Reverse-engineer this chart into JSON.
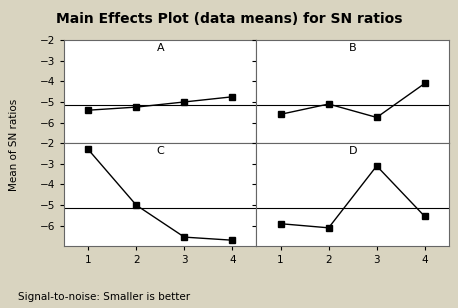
{
  "title": "Main Effects Plot (data means) for SN ratios",
  "ylabel": "Mean of SN ratios",
  "footnote": "Signal-to-noise: Smaller is better",
  "x": [
    1,
    2,
    3,
    4
  ],
  "subplots": [
    {
      "label": "A",
      "y": [
        -5.4,
        -5.25,
        -5.0,
        -4.75
      ]
    },
    {
      "label": "B",
      "y": [
        -5.6,
        -5.1,
        -5.75,
        -4.1
      ]
    },
    {
      "label": "C",
      "y": [
        -2.3,
        -5.0,
        -6.55,
        -6.7
      ]
    },
    {
      "label": "D",
      "y": [
        -5.9,
        -6.1,
        -3.1,
        -5.55
      ]
    }
  ],
  "ylim": [
    -7,
    -2
  ],
  "yticks": [
    -2,
    -3,
    -4,
    -5,
    -6
  ],
  "xticks": [
    1,
    2,
    3,
    4
  ],
  "bg_color": "#d9d4c0",
  "plot_bg_color": "#ffffff",
  "line_color": "#000000",
  "spine_color": "#666666",
  "marker": "s",
  "marker_size": 4,
  "font_size_title": 10,
  "font_size_labels": 7.5,
  "font_size_sublabels": 8,
  "font_size_footnote": 7.5,
  "font_size_yticks": 7.5,
  "font_size_xticks": 7.5
}
